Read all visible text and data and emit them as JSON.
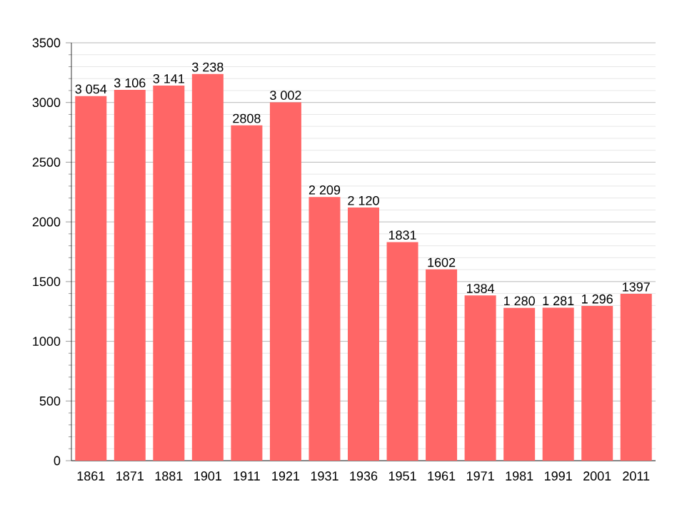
{
  "chart_data": {
    "type": "bar",
    "categories": [
      "1861",
      "1871",
      "1881",
      "1901",
      "1911",
      "1921",
      "1931",
      "1936",
      "1951",
      "1961",
      "1971",
      "1981",
      "1991",
      "2001",
      "2011"
    ],
    "values": [
      3054,
      3106,
      3141,
      3238,
      2808,
      3002,
      2209,
      2120,
      1831,
      1602,
      1384,
      1280,
      1281,
      1296,
      1397
    ],
    "value_labels": [
      "3 054",
      "3 106",
      "3 141",
      "3 238",
      "2808",
      "3 002",
      "2 209",
      "2 120",
      "1831",
      "1602",
      "1384",
      "1 280",
      "1 281",
      "1 296",
      "1397"
    ],
    "color": "#ff6666",
    "ylim": [
      0,
      3500
    ],
    "yticks": [
      0,
      500,
      1000,
      1500,
      2000,
      2500,
      3000,
      3500
    ],
    "grid": "y"
  }
}
